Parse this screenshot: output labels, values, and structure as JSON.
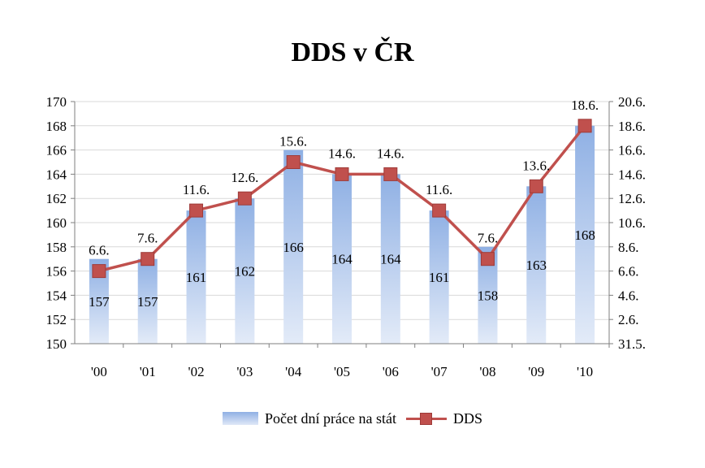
{
  "chart_data": {
    "type": "bar+line",
    "title": "DDS v ČR",
    "categories": [
      "'00",
      "'01",
      "'02",
      "'03",
      "'04",
      "'05",
      "'06",
      "'07",
      "'08",
      "'09",
      "'10"
    ],
    "bar_series": {
      "name": "Počet dní práce na stát",
      "values": [
        157,
        157,
        161,
        162,
        166,
        164,
        164,
        161,
        158,
        163,
        168
      ],
      "labels": [
        "157",
        "157",
        "161",
        "162",
        "166",
        "164",
        "164",
        "161",
        "158",
        "163",
        "168"
      ]
    },
    "line_series": {
      "name": "DDS",
      "values": [
        6.6,
        7.6,
        11.6,
        12.6,
        15.6,
        14.6,
        14.6,
        11.6,
        7.6,
        13.6,
        18.6
      ],
      "labels": [
        "6.6.",
        "7.6.",
        "11.6.",
        "12.6.",
        "15.6.",
        "14.6.",
        "14.6.",
        "11.6.",
        "7.6.",
        "13.6.",
        "18.6."
      ]
    },
    "y_left": {
      "ylim": [
        150,
        170
      ],
      "ticks": [
        "150",
        "152",
        "154",
        "156",
        "158",
        "160",
        "162",
        "164",
        "166",
        "168",
        "170"
      ]
    },
    "y_right": {
      "ylim": [
        0.6,
        20.6
      ],
      "ticks": [
        "31.5.",
        "2.6.",
        "4.6.",
        "6.6.",
        "8.6.",
        "10.6.",
        "12.6.",
        "14.6.",
        "16.6.",
        "18.6.",
        "20.6."
      ]
    },
    "grid": true,
    "legend_position": "bottom",
    "colors": {
      "bar_top": "#8fb0e4",
      "bar_bottom": "#e3ebf8",
      "line": "#c0504d",
      "grid": "#d9d9d9",
      "axis": "#7f7f7f"
    }
  }
}
